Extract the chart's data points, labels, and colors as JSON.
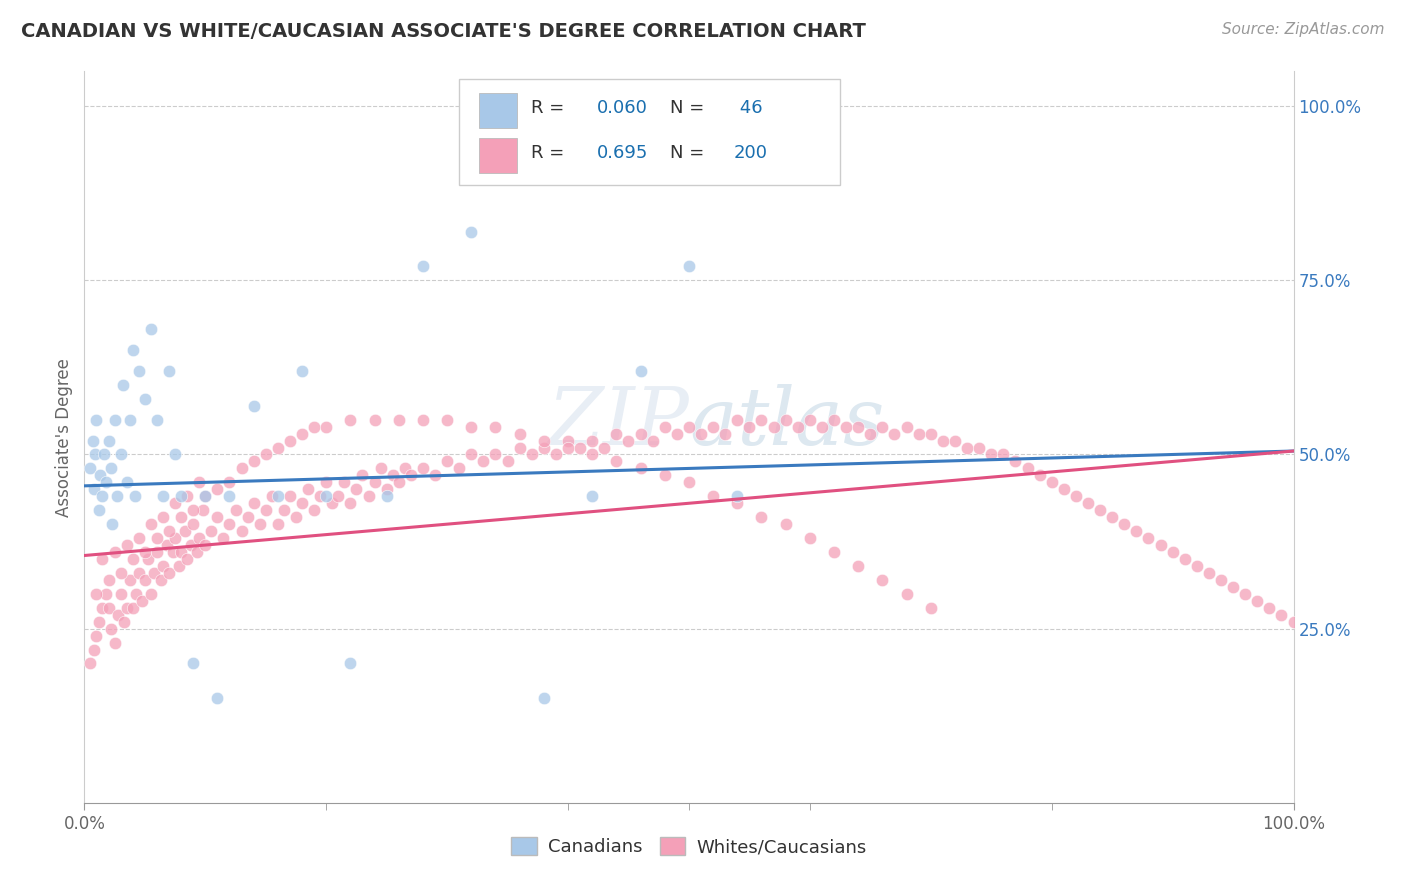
{
  "title": "CANADIAN VS WHITE/CAUCASIAN ASSOCIATE'S DEGREE CORRELATION CHART",
  "source": "Source: ZipAtlas.com",
  "ylabel": "Associate's Degree",
  "xlim": [
    0.0,
    1.0
  ],
  "ylim": [
    0.0,
    1.05
  ],
  "xtick_labels": [
    "0.0%",
    "100.0%"
  ],
  "ytick_labels": [
    "25.0%",
    "50.0%",
    "75.0%",
    "100.0%"
  ],
  "ytick_positions": [
    0.25,
    0.5,
    0.75,
    1.0
  ],
  "canadian_R": 0.06,
  "canadian_N": 46,
  "white_R": 0.695,
  "white_N": 200,
  "canadian_color": "#a8c8e8",
  "white_color": "#f4a0b8",
  "canadian_line_color": "#3a7abf",
  "white_line_color": "#e05080",
  "watermark_color": "#e8eef5",
  "background_color": "#ffffff",
  "grid_color": "#cccccc",
  "title_color": "#333333",
  "legend_color": "#1a6faf",
  "ytick_color": "#3a7abf",
  "can_line_y0": 0.455,
  "can_line_y1": 0.505,
  "white_line_y0": 0.355,
  "white_line_y1": 0.505,
  "canadian_x": [
    0.005,
    0.007,
    0.008,
    0.009,
    0.01,
    0.012,
    0.013,
    0.015,
    0.016,
    0.018,
    0.02,
    0.022,
    0.023,
    0.025,
    0.027,
    0.03,
    0.032,
    0.035,
    0.038,
    0.04,
    0.042,
    0.045,
    0.05,
    0.055,
    0.06,
    0.065,
    0.07,
    0.075,
    0.08,
    0.09,
    0.1,
    0.11,
    0.12,
    0.14,
    0.16,
    0.18,
    0.2,
    0.22,
    0.25,
    0.28,
    0.32,
    0.38,
    0.42,
    0.46,
    0.5,
    0.54
  ],
  "canadian_y": [
    0.48,
    0.52,
    0.45,
    0.5,
    0.55,
    0.42,
    0.47,
    0.44,
    0.5,
    0.46,
    0.52,
    0.48,
    0.4,
    0.55,
    0.44,
    0.5,
    0.6,
    0.46,
    0.55,
    0.65,
    0.44,
    0.62,
    0.58,
    0.68,
    0.55,
    0.44,
    0.62,
    0.5,
    0.44,
    0.2,
    0.44,
    0.15,
    0.44,
    0.57,
    0.44,
    0.62,
    0.44,
    0.2,
    0.44,
    0.77,
    0.82,
    0.15,
    0.44,
    0.62,
    0.77,
    0.44
  ],
  "white_x": [
    0.005,
    0.008,
    0.01,
    0.012,
    0.015,
    0.018,
    0.02,
    0.022,
    0.025,
    0.028,
    0.03,
    0.033,
    0.035,
    0.038,
    0.04,
    0.043,
    0.045,
    0.048,
    0.05,
    0.053,
    0.055,
    0.058,
    0.06,
    0.063,
    0.065,
    0.068,
    0.07,
    0.073,
    0.075,
    0.078,
    0.08,
    0.083,
    0.085,
    0.088,
    0.09,
    0.093,
    0.095,
    0.098,
    0.1,
    0.105,
    0.11,
    0.115,
    0.12,
    0.125,
    0.13,
    0.135,
    0.14,
    0.145,
    0.15,
    0.155,
    0.16,
    0.165,
    0.17,
    0.175,
    0.18,
    0.185,
    0.19,
    0.195,
    0.2,
    0.205,
    0.21,
    0.215,
    0.22,
    0.225,
    0.23,
    0.235,
    0.24,
    0.245,
    0.25,
    0.255,
    0.26,
    0.265,
    0.27,
    0.28,
    0.29,
    0.3,
    0.31,
    0.32,
    0.33,
    0.34,
    0.35,
    0.36,
    0.37,
    0.38,
    0.39,
    0.4,
    0.41,
    0.42,
    0.43,
    0.44,
    0.45,
    0.46,
    0.47,
    0.48,
    0.49,
    0.5,
    0.51,
    0.52,
    0.53,
    0.54,
    0.55,
    0.56,
    0.57,
    0.58,
    0.59,
    0.6,
    0.61,
    0.62,
    0.63,
    0.64,
    0.65,
    0.66,
    0.67,
    0.68,
    0.69,
    0.7,
    0.71,
    0.72,
    0.73,
    0.74,
    0.75,
    0.76,
    0.77,
    0.78,
    0.79,
    0.8,
    0.81,
    0.82,
    0.83,
    0.84,
    0.85,
    0.86,
    0.87,
    0.88,
    0.89,
    0.9,
    0.91,
    0.92,
    0.93,
    0.94,
    0.95,
    0.96,
    0.97,
    0.98,
    0.99,
    1.0,
    0.015,
    0.025,
    0.035,
    0.045,
    0.055,
    0.065,
    0.075,
    0.085,
    0.095,
    0.01,
    0.02,
    0.03,
    0.04,
    0.05,
    0.06,
    0.07,
    0.08,
    0.09,
    0.1,
    0.11,
    0.12,
    0.13,
    0.14,
    0.15,
    0.16,
    0.17,
    0.18,
    0.19,
    0.2,
    0.22,
    0.24,
    0.26,
    0.28,
    0.3,
    0.32,
    0.34,
    0.36,
    0.38,
    0.4,
    0.42,
    0.44,
    0.46,
    0.48,
    0.5,
    0.52,
    0.54,
    0.56,
    0.58,
    0.6,
    0.62,
    0.64,
    0.66,
    0.68,
    0.7
  ],
  "white_y": [
    0.2,
    0.22,
    0.24,
    0.26,
    0.28,
    0.3,
    0.28,
    0.25,
    0.23,
    0.27,
    0.3,
    0.26,
    0.28,
    0.32,
    0.28,
    0.3,
    0.33,
    0.29,
    0.32,
    0.35,
    0.3,
    0.33,
    0.36,
    0.32,
    0.34,
    0.37,
    0.33,
    0.36,
    0.38,
    0.34,
    0.36,
    0.39,
    0.35,
    0.37,
    0.4,
    0.36,
    0.38,
    0.42,
    0.37,
    0.39,
    0.41,
    0.38,
    0.4,
    0.42,
    0.39,
    0.41,
    0.43,
    0.4,
    0.42,
    0.44,
    0.4,
    0.42,
    0.44,
    0.41,
    0.43,
    0.45,
    0.42,
    0.44,
    0.46,
    0.43,
    0.44,
    0.46,
    0.43,
    0.45,
    0.47,
    0.44,
    0.46,
    0.48,
    0.45,
    0.47,
    0.46,
    0.48,
    0.47,
    0.48,
    0.47,
    0.49,
    0.48,
    0.5,
    0.49,
    0.5,
    0.49,
    0.51,
    0.5,
    0.51,
    0.5,
    0.52,
    0.51,
    0.52,
    0.51,
    0.53,
    0.52,
    0.53,
    0.52,
    0.54,
    0.53,
    0.54,
    0.53,
    0.54,
    0.53,
    0.55,
    0.54,
    0.55,
    0.54,
    0.55,
    0.54,
    0.55,
    0.54,
    0.55,
    0.54,
    0.54,
    0.53,
    0.54,
    0.53,
    0.54,
    0.53,
    0.53,
    0.52,
    0.52,
    0.51,
    0.51,
    0.5,
    0.5,
    0.49,
    0.48,
    0.47,
    0.46,
    0.45,
    0.44,
    0.43,
    0.42,
    0.41,
    0.4,
    0.39,
    0.38,
    0.37,
    0.36,
    0.35,
    0.34,
    0.33,
    0.32,
    0.31,
    0.3,
    0.29,
    0.28,
    0.27,
    0.26,
    0.35,
    0.36,
    0.37,
    0.38,
    0.4,
    0.41,
    0.43,
    0.44,
    0.46,
    0.3,
    0.32,
    0.33,
    0.35,
    0.36,
    0.38,
    0.39,
    0.41,
    0.42,
    0.44,
    0.45,
    0.46,
    0.48,
    0.49,
    0.5,
    0.51,
    0.52,
    0.53,
    0.54,
    0.54,
    0.55,
    0.55,
    0.55,
    0.55,
    0.55,
    0.54,
    0.54,
    0.53,
    0.52,
    0.51,
    0.5,
    0.49,
    0.48,
    0.47,
    0.46,
    0.44,
    0.43,
    0.41,
    0.4,
    0.38,
    0.36,
    0.34,
    0.32,
    0.3,
    0.28
  ]
}
